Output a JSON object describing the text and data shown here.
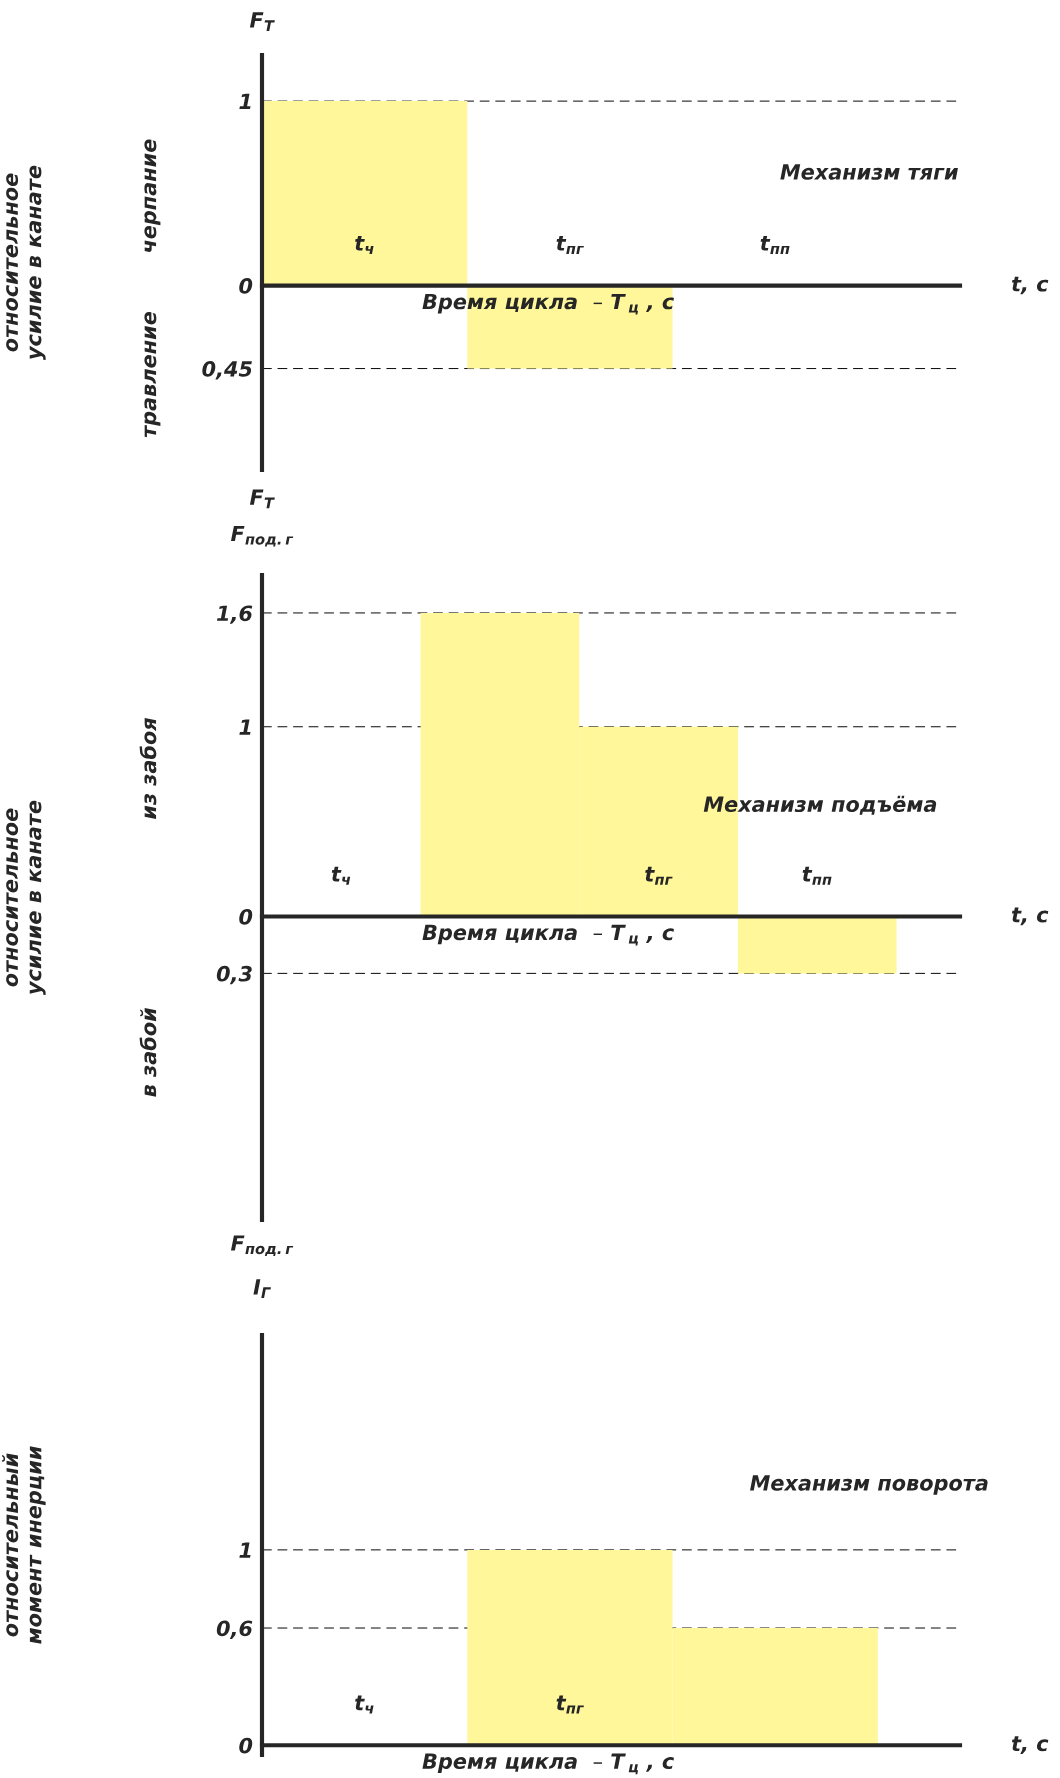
{
  "chart_data": [
    {
      "type": "bar",
      "title": "Механизм тяги",
      "xlabel": "Время цикла  – T$_{ц}$ , с",
      "ylabel": "относительное\nусилие в канате",
      "categories": [
        "t$_{ч}$",
        "t$_{пг}$",
        "t$_{пп}$"
      ],
      "values": [
        1,
        -0.45,
        0
      ],
      "color": "#fff799",
      "ylim": [
        -1.0,
        1.25
      ],
      "yticks": [
        {
          "value": 1,
          "label": "1"
        },
        0,
        {
          "value": -0.45,
          "label": "0,45"
        }
      ],
      "grid": "y",
      "annotations": [
        "F$_{Т}$",
        "черпание",
        "травление",
        "F$_{Т}$",
        "t, с"
      ]
    },
    {
      "type": "bar",
      "title": "Механизм подъёма",
      "xlabel": "Время цикла  – T$_{ц}$ , с",
      "ylabel": "относительное\nусилие в канате",
      "categories": [
        "t$_{ч}$",
        null,
        "t$_{пг}$",
        "t$_{пп}$"
      ],
      "values": [
        0,
        1.6,
        1,
        -0.3
      ],
      "color": "#fff799",
      "ylim": [
        -1.6,
        1.8
      ],
      "yticks": [
        {
          "value": 1.6,
          "label": "1,6"
        },
        1,
        0,
        {
          "value": -0.3,
          "label": "0,3"
        }
      ],
      "grid": "y",
      "annotations": [
        "F$_{под.г}$",
        "из забоя",
        "в забой",
        "F$_{под.г}$",
        "t, с"
      ]
    },
    {
      "type": "bar",
      "title": "Механизм поворота",
      "xlabel": "Время цикла  – T$_{ц}$ , с",
      "ylabel": "относительный\nмомент инерции",
      "categories": [
        "t$_{ч}$",
        "t$_{пг}$",
        null
      ],
      "values": [
        0,
        1,
        0.6
      ],
      "color": "#fff799",
      "ylim": [
        -0.05,
        2.1
      ],
      "yticks": [
        1,
        {
          "value": 0.6,
          "label": "0,6"
        },
        0
      ],
      "grid": "y",
      "annotations": [
        "I$_{Г}$",
        "t, с"
      ]
    }
  ]
}
